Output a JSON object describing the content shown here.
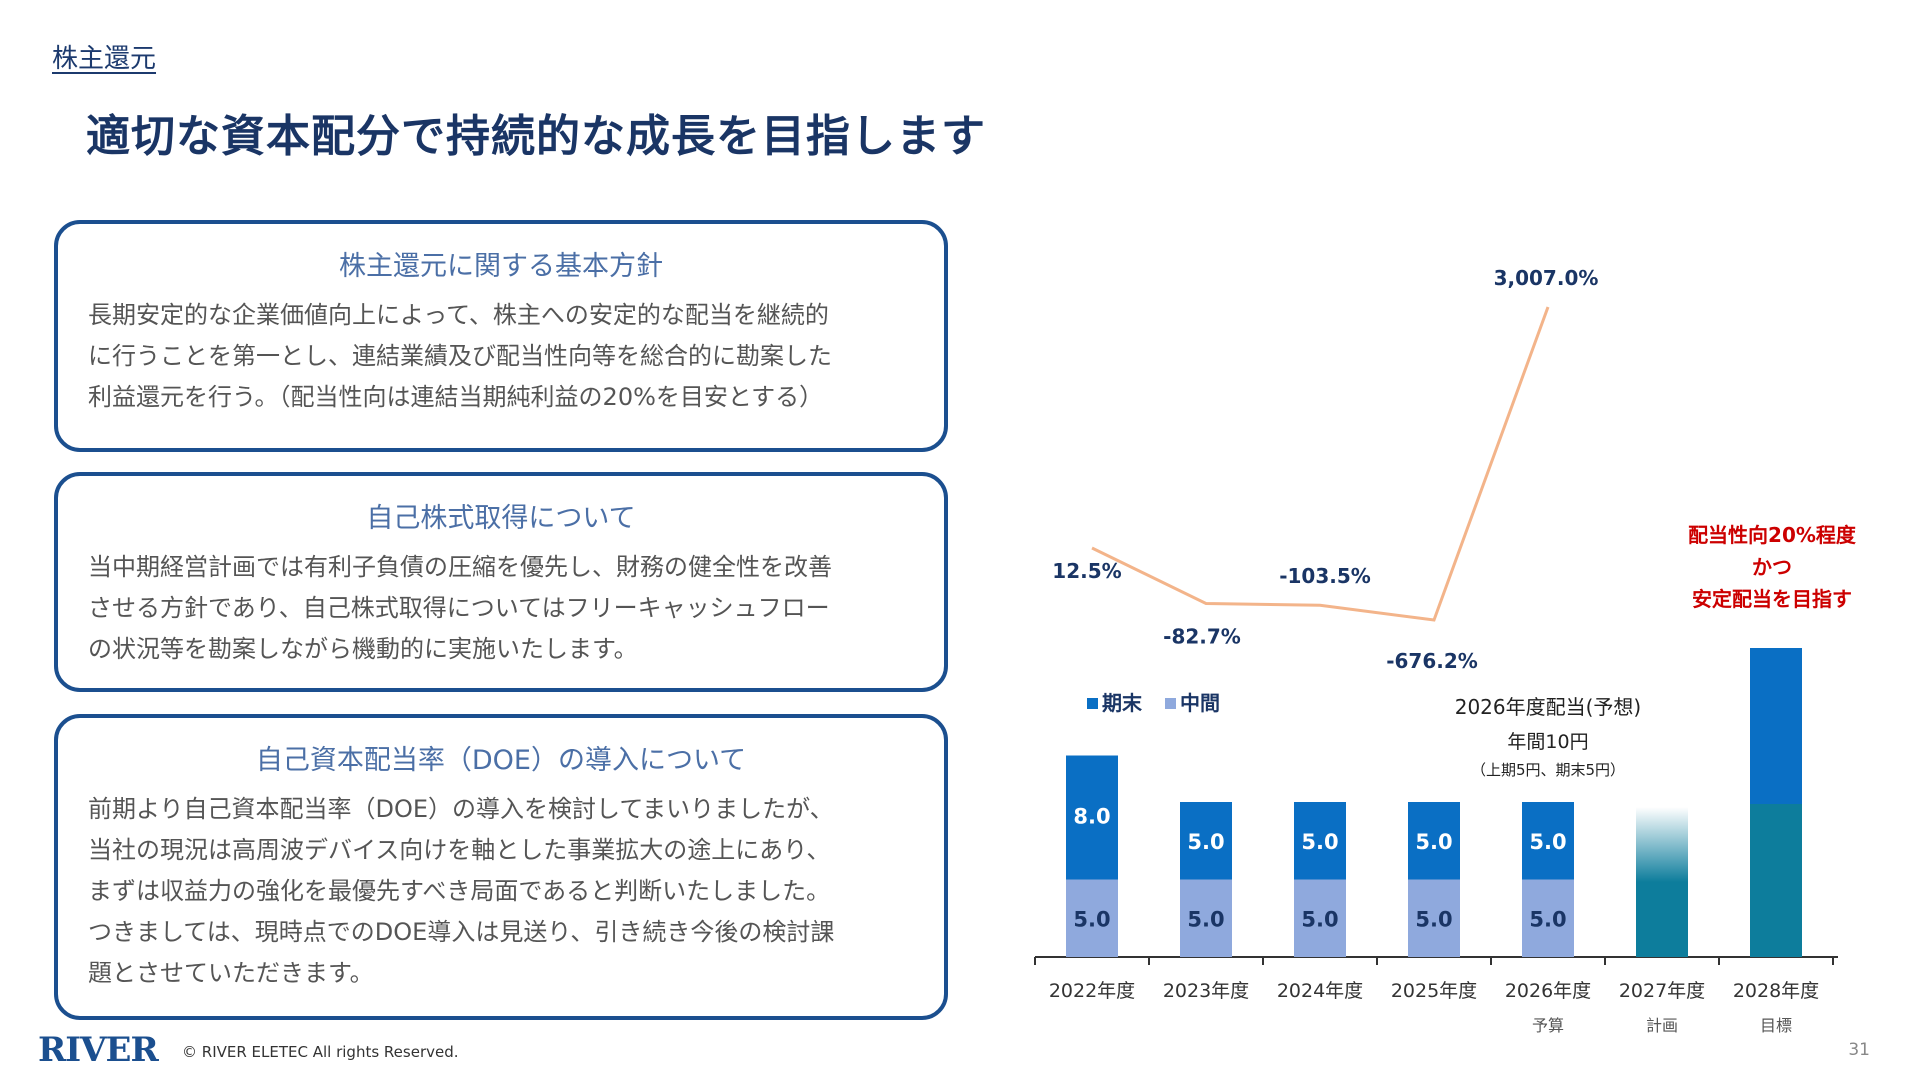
{
  "header": {
    "section": "株主還元",
    "title": "適切な資本配分で持続的な成長を目指します"
  },
  "boxes": [
    {
      "title": "株主還元に関する基本方針",
      "lines": [
        "長期安定的な企業価値向上によって、株主への安定的な配当を継続的",
        "に行うことを第一とし、連結業績及び配当性向等を総合的に勘案した",
        "利益還元を行う。（配当性向は連結当期純利益の20%を目安とする）"
      ]
    },
    {
      "title": "自己株式取得について",
      "lines": [
        "当中期経営計画では有利子負債の圧縮を優先し、財務の健全性を改善",
        "させる方針であり、自己株式取得についてはフリーキャッシュフロー",
        "の状況等を勘案しながら機動的に実施いたします。"
      ]
    },
    {
      "title": "自己資本配当率（DOE）の導入について",
      "lines": [
        "前期より自己資本配当率（DOE）の導入を検討してまいりましたが、",
        "当社の現況は高周波デバイス向けを軸とした事業拡大の途上にあり、",
        "まずは収益力の強化を最優先すべき局面であると判断いたしました。",
        "つきましては、現時点でのDOE導入は見送り、引き続き今後の検討課",
        "題とさせていただきます。"
      ]
    }
  ],
  "chart_data": {
    "type": "bar",
    "categories": [
      "2022年度",
      "2023年度",
      "2024年度",
      "2025年度",
      "2026年度",
      "2027年度",
      "2028年度"
    ],
    "sublabels": [
      "",
      "",
      "",
      "",
      "予算",
      "計画",
      "目標"
    ],
    "series": [
      {
        "name": "中間",
        "values": [
          5.0,
          5.0,
          5.0,
          5.0,
          5.0,
          null,
          null
        ],
        "labels": [
          "5.0",
          "5.0",
          "5.0",
          "5.0",
          "5.0",
          "",
          ""
        ]
      },
      {
        "name": "期末",
        "values": [
          8.0,
          5.0,
          5.0,
          5.0,
          5.0,
          null,
          null
        ],
        "labels": [
          "8.0",
          "5.0",
          "5.0",
          "5.0",
          "5.0",
          "",
          ""
        ]
      }
    ],
    "line": {
      "values": [
        12.5,
        -82.7,
        -103.5,
        -676.2,
        3007.0
      ],
      "labels": [
        "12.5%",
        "-82.7%",
        "-103.5%",
        "-676.2%",
        "3,007.0%"
      ]
    },
    "forecast_note": {
      "title": "2026年度配当(予想)",
      "annual": "年間10円",
      "breakdown": "（上期5円、期末5円）"
    },
    "target_note": [
      "配当性向20%程度",
      "かつ",
      "安定配当を目指す"
    ],
    "colors": {
      "kimatsu": "#0a6fc4",
      "chukan": "#8fa9dd",
      "line": "#f3b48a",
      "future": "#0d7d9c",
      "target": "#cc0000",
      "label": "#1a3565"
    }
  },
  "footer": {
    "logo": "RIVER",
    "copyright": "© RIVER ELETEC All rights Reserved.",
    "page": "31"
  }
}
